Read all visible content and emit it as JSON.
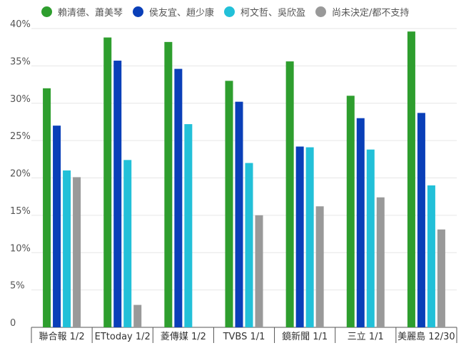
{
  "chart_data": {
    "type": "bar",
    "categories": [
      "聯合報 1/2",
      "ETtoday 1/2",
      "菱傳媒 1/2",
      "TVBS 1/1",
      "鏡新聞 1/1",
      "三立 1/1",
      "美麗島 12/30"
    ],
    "series": [
      {
        "name": "賴清德、蕭美琴",
        "color": "#2e9e2e",
        "values": [
          32,
          38.8,
          38.2,
          33,
          35.6,
          31,
          39.6
        ]
      },
      {
        "name": "侯友宜、趙少康",
        "color": "#0a3fb8",
        "values": [
          27,
          35.7,
          34.6,
          30.2,
          24.2,
          28,
          28.7
        ]
      },
      {
        "name": "柯文哲、吳欣盈",
        "color": "#22c0d8",
        "values": [
          21,
          22.4,
          27.2,
          22,
          24.1,
          23.8,
          19
        ]
      },
      {
        "name": "尚未決定/都不支持",
        "color": "#999999",
        "values": [
          20.1,
          3,
          null,
          15,
          16.2,
          17.4,
          13.1
        ]
      }
    ],
    "yticks": [
      "40%",
      "35%",
      "30%",
      "25%",
      "20%",
      "15%",
      "10%",
      "5%",
      "0"
    ],
    "ylim": [
      0,
      40
    ],
    "grid": true,
    "legend_position": "top"
  }
}
